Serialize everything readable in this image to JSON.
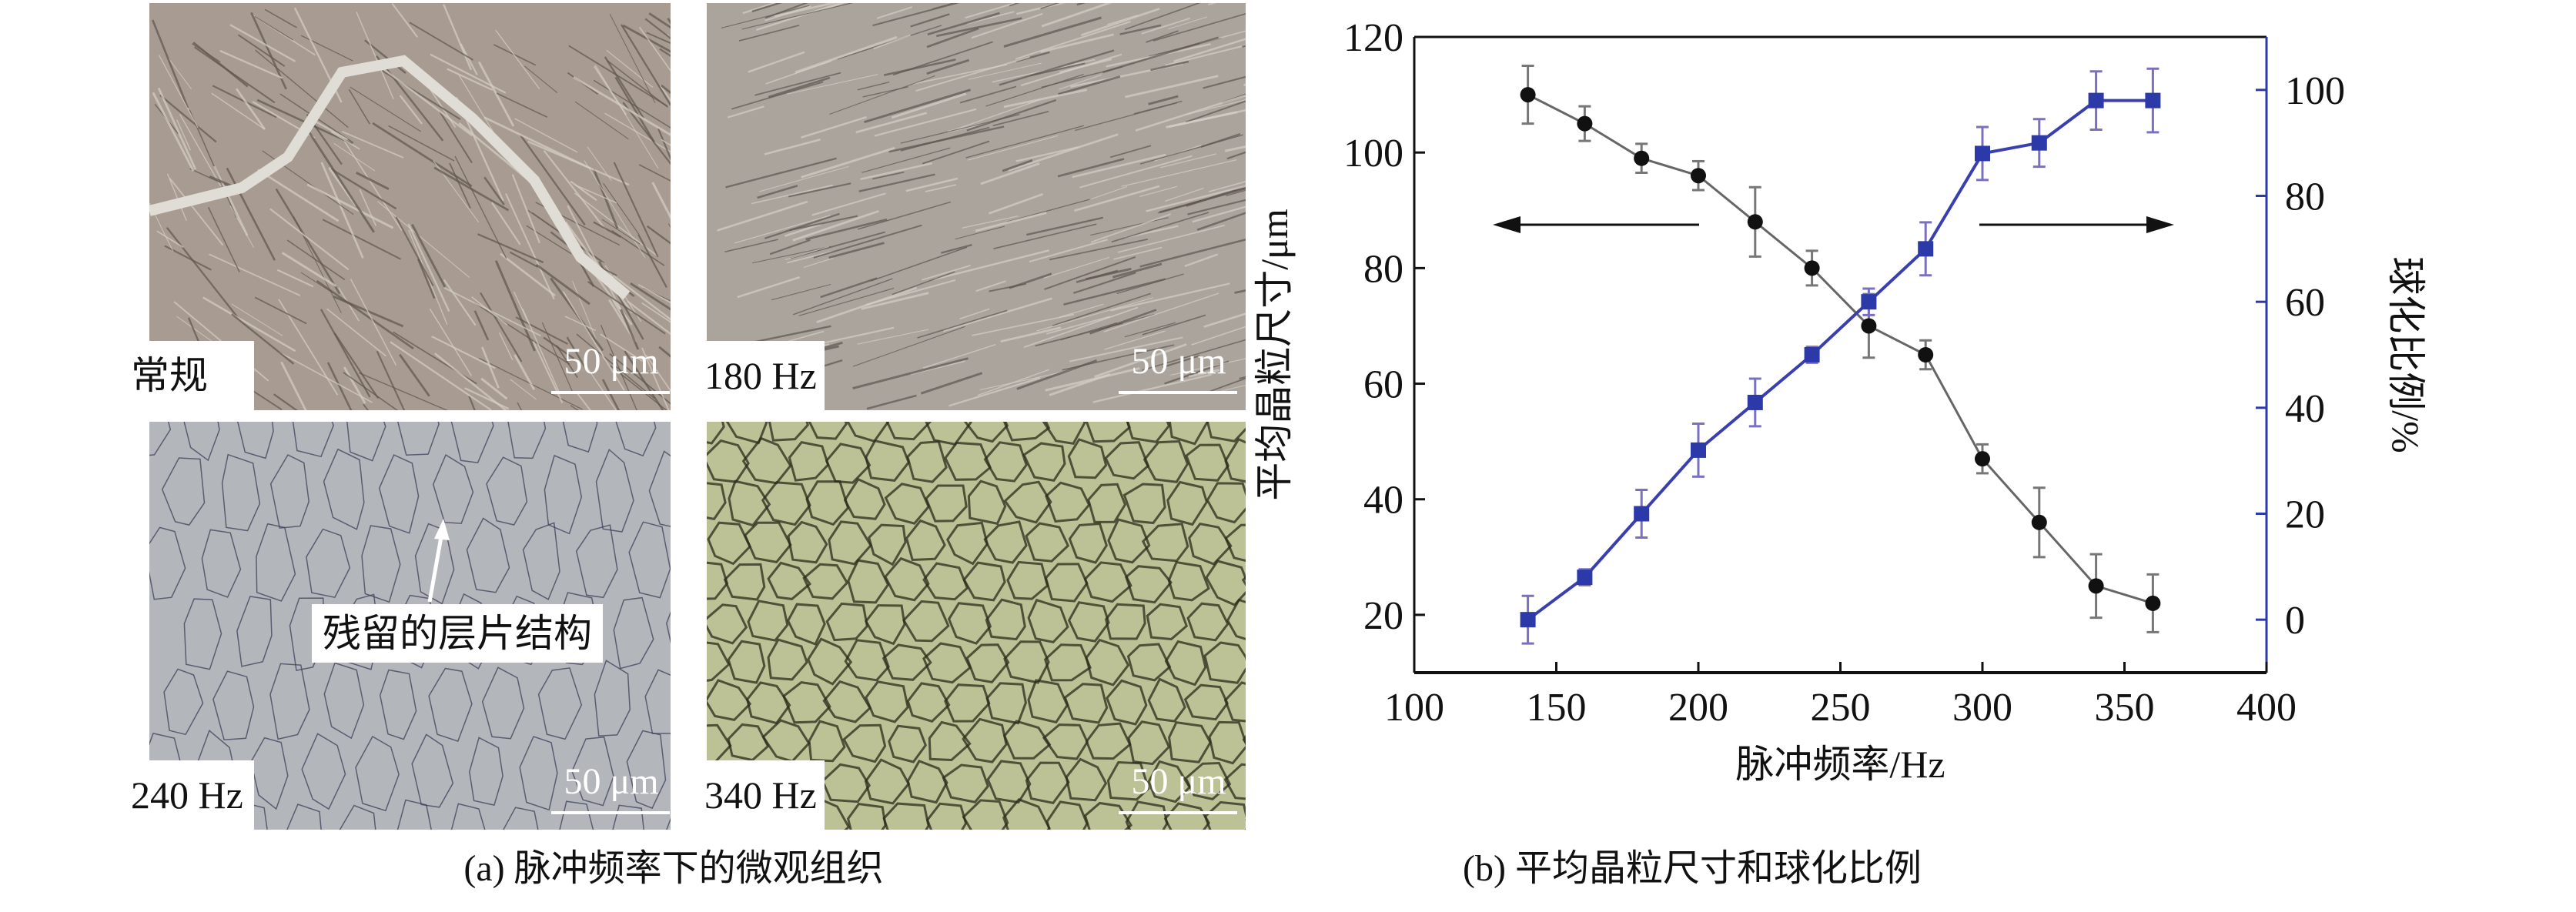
{
  "figure_a": {
    "caption": "(a) 脉冲频率下的微观组织",
    "panels": [
      {
        "label": "常规",
        "scale_bar": "50 μm",
        "tone": "#a89c92"
      },
      {
        "label": "180 Hz",
        "scale_bar": "50 μm",
        "tone": "#aaa49d"
      },
      {
        "label": "240 Hz",
        "scale_bar": "50 μm",
        "tone": "#b3b6ba"
      },
      {
        "label": "340 Hz",
        "scale_bar": "50 μm",
        "tone": "#bcc196"
      }
    ],
    "annotation": "残留的层片结构"
  },
  "chart_data": {
    "type": "line",
    "caption": "(b) 平均晶粒尺寸和球化比例",
    "xlabel": "脉冲频率/Hz",
    "ylabel_left": "平均晶粒尺寸/μm",
    "ylabel_right": "球化比例/%",
    "xlim": [
      100,
      400
    ],
    "ylim_left": [
      10,
      120
    ],
    "ylim_right": [
      -10,
      110
    ],
    "x_ticks": [
      100,
      150,
      200,
      250,
      300,
      350,
      400
    ],
    "y_ticks_left": [
      20,
      40,
      60,
      80,
      100,
      120
    ],
    "y_ticks_right": [
      0,
      20,
      40,
      60,
      80,
      100
    ],
    "grid": false,
    "x": [
      140,
      160,
      180,
      200,
      220,
      240,
      260,
      280,
      300,
      320,
      340,
      360
    ],
    "series": [
      {
        "axis": "left",
        "color": "#111111",
        "line_color": "#666666",
        "marker": "circle",
        "values": [
          110,
          105,
          99,
          96,
          88,
          80,
          70,
          65,
          47,
          36,
          25,
          22
        ],
        "errors": [
          5,
          3,
          2.5,
          2.5,
          6,
          3,
          5.5,
          2.5,
          2.5,
          6,
          5.5,
          5
        ],
        "direction_arrow": "left"
      },
      {
        "axis": "right",
        "color": "#2b3aa8",
        "line_color": "#3a3fb0",
        "marker": "square",
        "values": [
          0,
          8,
          20,
          32,
          41,
          50,
          60,
          70,
          88,
          90,
          98,
          98
        ],
        "errors": [
          4.5,
          1.5,
          4.5,
          5,
          4.5,
          1.5,
          2.5,
          5,
          5,
          4.5,
          5.5,
          6
        ],
        "direction_arrow": "right"
      }
    ]
  }
}
